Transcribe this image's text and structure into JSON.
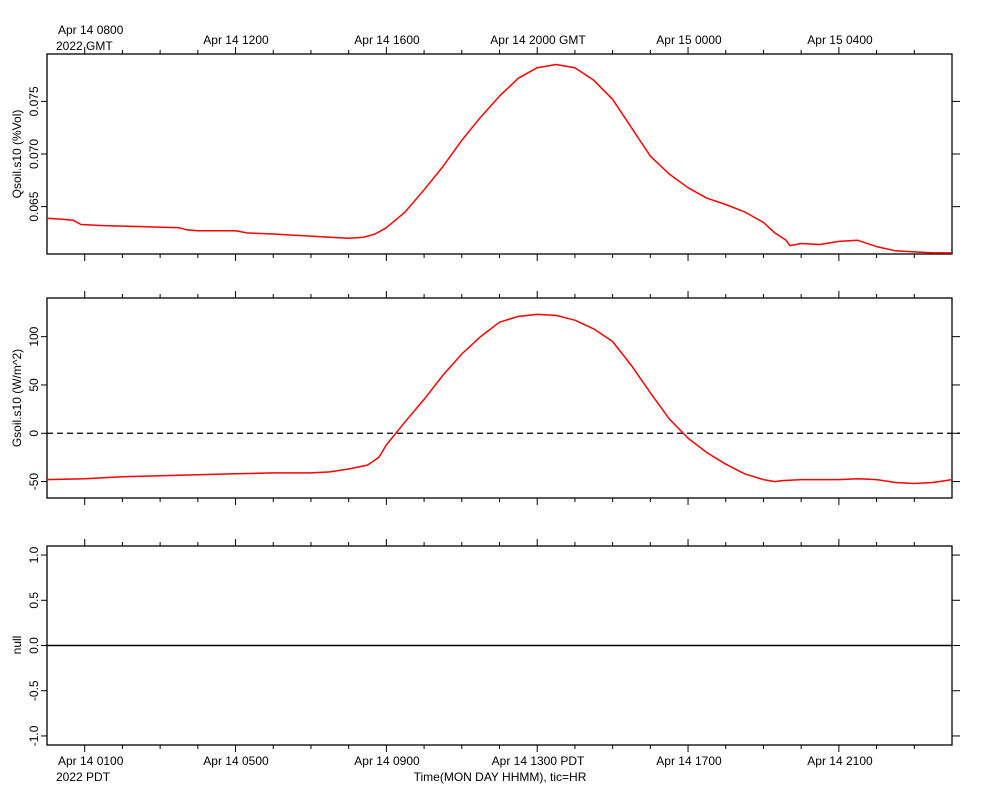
{
  "top_axis": {
    "first_label": "Apr 14 0800",
    "first_sublabel": "2022 GMT",
    "labels": [
      "Apr 14 1200",
      "Apr 14 1600",
      "Apr 14 2000 GMT",
      "Apr 15 0000",
      "Apr 15 0400"
    ]
  },
  "bottom_axis": {
    "first_label": "Apr 14 0100",
    "first_sublabel": "2022 PDT",
    "labels": [
      "Apr 14 0500",
      "Apr 14 0900",
      "Apr 14 1300 PDT",
      "Apr 14 1700",
      "Apr 14 2100"
    ],
    "title": "Time(MON DAY HHMM), tic=HR"
  },
  "chart_data": [
    {
      "type": "line",
      "ylabel": "Qsoil.s10 (%Vol)",
      "x_unit": "hours since Apr 14 0000 PDT",
      "xlim": [
        0.0,
        24.0
      ],
      "ylim": [
        0.0605,
        0.0795
      ],
      "yticks": [
        "0.065",
        "0.070",
        "0.075"
      ],
      "ytick_values": [
        0.065,
        0.07,
        0.075
      ],
      "series": [
        {
          "color": "#ff0000",
          "x": [
            0,
            0.4,
            0.7,
            0.9,
            1.5,
            2.5,
            3.5,
            3.7,
            4.0,
            5.0,
            5.3,
            6.0,
            6.5,
            7.0,
            7.5,
            8.0,
            8.4,
            8.7,
            9.0,
            9.5,
            10.0,
            10.5,
            11.0,
            11.5,
            12.0,
            12.5,
            13.0,
            13.5,
            14.0,
            14.5,
            15.0,
            15.5,
            16.0,
            16.5,
            17.0,
            17.5,
            18.0,
            18.5,
            19.0,
            19.3,
            19.6,
            19.7,
            20.0,
            20.5,
            21.0,
            21.5,
            22.0,
            22.5,
            23.0,
            23.5,
            24.0
          ],
          "y": [
            0.0639,
            0.0638,
            0.0637,
            0.0633,
            0.0632,
            0.0631,
            0.063,
            0.0628,
            0.0627,
            0.0627,
            0.0625,
            0.0624,
            0.0623,
            0.0622,
            0.0621,
            0.062,
            0.0621,
            0.0624,
            0.063,
            0.0645,
            0.0666,
            0.0688,
            0.0713,
            0.0735,
            0.0755,
            0.0772,
            0.0782,
            0.0785,
            0.0782,
            0.077,
            0.0752,
            0.0725,
            0.0698,
            0.0681,
            0.0668,
            0.0658,
            0.0652,
            0.0645,
            0.0635,
            0.0625,
            0.0618,
            0.0613,
            0.0615,
            0.0614,
            0.0617,
            0.0618,
            0.0612,
            0.0608,
            0.0607,
            0.0606,
            0.0606
          ]
        }
      ]
    },
    {
      "type": "line",
      "ylabel": "Gsoil.s10 (W/m^2)",
      "x_unit": "hours since Apr 14 0000 PDT",
      "xlim": [
        0.0,
        24.0
      ],
      "ylim": [
        -67.0,
        140.0
      ],
      "yticks": [
        "-50",
        "0",
        "50",
        "100"
      ],
      "ytick_values": [
        -50,
        0,
        50,
        100
      ],
      "reference_line": {
        "y": 0,
        "style": "dashed"
      },
      "series": [
        {
          "color": "#ff0000",
          "x": [
            0,
            1.0,
            2.0,
            3.0,
            4.0,
            5.0,
            6.0,
            7.0,
            7.5,
            8.0,
            8.5,
            8.8,
            9.0,
            9.5,
            10.0,
            10.5,
            11.0,
            11.5,
            12.0,
            12.5,
            13.0,
            13.5,
            14.0,
            14.5,
            15.0,
            15.5,
            16.0,
            16.5,
            17.0,
            17.5,
            18.0,
            18.5,
            19.0,
            19.3,
            19.5,
            20.0,
            20.5,
            21.0,
            21.5,
            22.0,
            22.5,
            23.0,
            23.5,
            24.0
          ],
          "y": [
            -48,
            -47,
            -45,
            -44,
            -43,
            -42,
            -41,
            -41,
            -40,
            -37,
            -33,
            -25,
            -12,
            12,
            35,
            60,
            82,
            100,
            115,
            121,
            123,
            122,
            117,
            108,
            95,
            70,
            42,
            15,
            -5,
            -20,
            -32,
            -42,
            -48,
            -50,
            -49,
            -48,
            -48,
            -48,
            -47,
            -48,
            -51,
            -52,
            -51,
            -48
          ]
        }
      ]
    },
    {
      "type": "line",
      "ylabel": "null",
      "x_unit": "hours since Apr 14 0000 PDT",
      "xlim": [
        0.0,
        24.0
      ],
      "ylim": [
        -1.1,
        1.1
      ],
      "yticks": [
        "-1.0",
        "-0.5",
        "0.0",
        "0.5",
        "1.0"
      ],
      "ytick_values": [
        -1.0,
        -0.5,
        0.0,
        0.5,
        1.0
      ],
      "series": [
        {
          "color": "#000000",
          "x": [
            0,
            24
          ],
          "y": [
            0,
            0
          ]
        }
      ]
    }
  ]
}
